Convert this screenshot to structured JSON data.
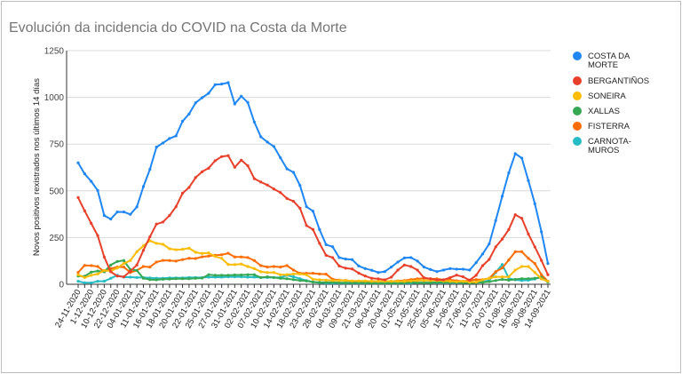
{
  "chart_data": {
    "type": "line",
    "title": "Evolución da incidencia do COVID na Costa da Morte",
    "xlabel": "",
    "ylabel": "Novos positivos rexistrados nos últimos 14 días",
    "ylim": [
      0,
      1250
    ],
    "yticks": [
      "0",
      "250",
      "500",
      "750",
      "1000",
      "1250"
    ],
    "grid": true,
    "legend_position": "right",
    "xtick_labels": [
      "24-11-2020",
      "1-12-2020",
      "10-12-2020",
      "22-12-2020",
      "04-01-2021",
      "11-01-2021",
      "16-01-2021",
      "18-01-2021",
      "20-01-2021",
      "22-01-2021",
      "25-01-2021",
      "27-01-2021",
      "31-01-2021",
      "02-02-2021",
      "07-02-2021",
      "10-02-2021",
      "14-02-2021",
      "18-02-2021",
      "23-02-2021",
      "28-02-2021",
      "04-03-2021",
      "09-03-2021",
      "21-03-2021",
      "06-04-2021",
      "20-04-2021",
      "01-05-2021",
      "11-05-2021",
      "25-05-2021",
      "05-06-2021",
      "15-06-2021",
      "27-06-2021",
      "11-07-2021",
      "20-07-2021",
      "01-08-2021",
      "16-08-2021",
      "30-08-2021",
      "14-09-2021"
    ],
    "series": [
      {
        "name": "COSTA DA MORTE",
        "legend_lines": [
          "COSTA DA",
          "MORTE"
        ],
        "color": "#1f86f5",
        "values": [
          650,
          591,
          551,
          502,
          368,
          349,
          387,
          387,
          374,
          414,
          523,
          615,
          734,
          756,
          780,
          794,
          872,
          911,
          971,
          998,
          1022,
          1068,
          1071,
          1079,
          965,
          1006,
          973,
          868,
          789,
          761,
          737,
          677,
          618,
          599,
          529,
          415,
          391,
          293,
          212,
          201,
          143,
          135,
          132,
          98,
          84,
          75,
          63,
          68,
          92,
          119,
          141,
          143,
          124,
          92,
          79,
          68,
          76,
          84,
          81,
          81,
          76,
          116,
          162,
          216,
          341,
          471,
          596,
          699,
          675,
          555,
          431,
          281,
          111
        ]
      },
      {
        "name": "BERGANTIÑOS",
        "legend_lines": [
          "BERGANTIÑOS"
        ],
        "color": "#e8402a",
        "values": [
          464,
          393,
          326,
          261,
          146,
          67,
          44,
          40,
          70,
          103,
          182,
          254,
          322,
          333,
          368,
          415,
          487,
          518,
          571,
          602,
          621,
          661,
          683,
          688,
          626,
          664,
          634,
          565,
          547,
          531,
          510,
          491,
          459,
          444,
          407,
          314,
          293,
          219,
          155,
          143,
          98,
          86,
          82,
          60,
          44,
          32,
          29,
          24,
          38,
          76,
          103,
          95,
          76,
          35,
          29,
          24,
          24,
          35,
          49,
          40,
          22,
          48,
          100,
          133,
          200,
          242,
          293,
          372,
          353,
          269,
          200,
          128,
          51
        ]
      },
      {
        "name": "SONEIRA",
        "legend_lines": [
          "SONEIRA"
        ],
        "color": "#fbbc04",
        "values": [
          51,
          36,
          48,
          55,
          74,
          71,
          87,
          111,
          127,
          174,
          206,
          233,
          219,
          214,
          190,
          185,
          187,
          193,
          171,
          165,
          168,
          149,
          139,
          106,
          105,
          108,
          95,
          84,
          67,
          63,
          63,
          51,
          51,
          55,
          55,
          51,
          27,
          24,
          22,
          20,
          20,
          20,
          18,
          18,
          18,
          16,
          16,
          16,
          16,
          16,
          16,
          18,
          20,
          20,
          20,
          20,
          18,
          16,
          14,
          16,
          12,
          12,
          24,
          32,
          40,
          40,
          40,
          76,
          95,
          95,
          63,
          29,
          16
        ]
      },
      {
        "name": "XALLAS",
        "legend_lines": [
          "XALLAS"
        ],
        "color": "#34a853",
        "values": [
          44,
          43,
          65,
          71,
          67,
          103,
          122,
          127,
          79,
          74,
          32,
          25,
          24,
          27,
          28,
          30,
          30,
          30,
          32,
          33,
          51,
          48,
          48,
          48,
          50,
          50,
          51,
          51,
          36,
          40,
          36,
          32,
          30,
          25,
          20,
          18,
          12,
          10,
          10,
          10,
          8,
          8,
          8,
          8,
          8,
          6,
          6,
          6,
          6,
          6,
          8,
          10,
          8,
          8,
          8,
          10,
          10,
          10,
          10,
          8,
          6,
          8,
          10,
          14,
          20,
          26,
          22,
          26,
          30,
          30,
          32,
          36,
          12
        ]
      },
      {
        "name": "FISTERRA",
        "legend_lines": [
          "FISTERRA"
        ],
        "color": "#ff6d01",
        "values": [
          63,
          101,
          100,
          95,
          67,
          84,
          92,
          92,
          63,
          74,
          95,
          92,
          119,
          128,
          127,
          124,
          132,
          139,
          138,
          147,
          151,
          155,
          158,
          166,
          146,
          146,
          143,
          127,
          100,
          92,
          95,
          92,
          100,
          76,
          59,
          59,
          59,
          55,
          54,
          27,
          22,
          21,
          16,
          16,
          16,
          16,
          16,
          16,
          16,
          18,
          20,
          25,
          29,
          32,
          30,
          29,
          24,
          24,
          19,
          16,
          20,
          25,
          25,
          32,
          67,
          87,
          130,
          174,
          174,
          139,
          111,
          51,
          16
        ]
      },
      {
        "name": "CARNOTA-MUROS",
        "legend_lines": [
          "CARNOTA-",
          "MUROS"
        ],
        "color": "#26bcc6",
        "values": [
          16,
          8,
          8,
          16,
          16,
          32,
          48,
          38,
          38,
          36,
          36,
          34,
          32,
          32,
          34,
          34,
          34,
          36,
          36,
          36,
          38,
          38,
          38,
          40,
          40,
          40,
          38,
          38,
          36,
          36,
          36,
          36,
          48,
          40,
          30,
          20,
          12,
          8,
          6,
          6,
          6,
          6,
          6,
          6,
          6,
          6,
          6,
          6,
          6,
          6,
          6,
          6,
          8,
          8,
          8,
          8,
          8,
          8,
          8,
          8,
          8,
          10,
          14,
          20,
          63,
          106,
          32,
          24,
          20,
          22,
          28,
          40,
          16
        ]
      }
    ]
  }
}
